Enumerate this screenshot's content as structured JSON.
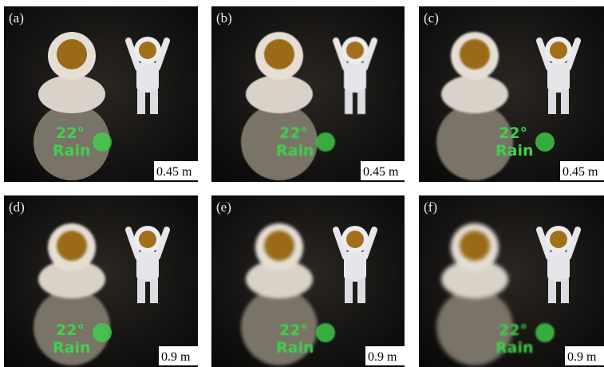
{
  "panels": [
    {
      "label": "(a)",
      "distance": "0.45 m"
    },
    {
      "label": "(b)",
      "distance": "0.45 m"
    },
    {
      "label": "(c)",
      "distance": "0.45 m"
    },
    {
      "label": "(d)",
      "distance": "0.9 m"
    },
    {
      "label": "(e)",
      "distance": "0.9 m"
    },
    {
      "label": "(f)",
      "distance": "0.9 m"
    }
  ],
  "hologram": {
    "line1": "22°",
    "line2": "Rain"
  }
}
